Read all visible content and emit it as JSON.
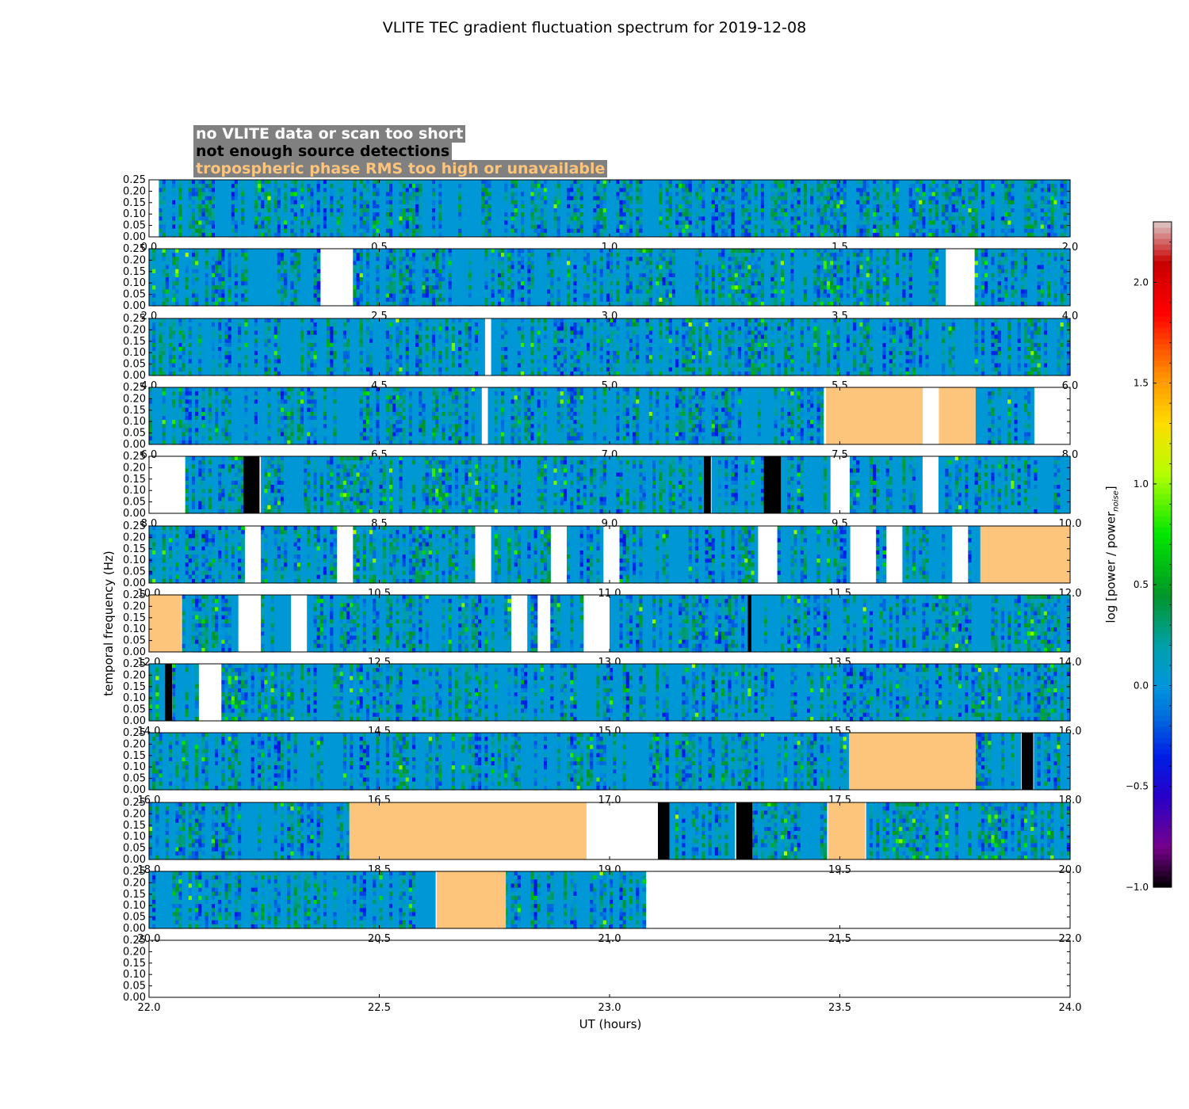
{
  "chart_data": {
    "type": "heatmap",
    "title": "VLITE TEC gradient fluctuation spectrum for 2019-12-08",
    "xlabel": "UT (hours)",
    "ylabel": "temporal frequency (Hz)",
    "colorbar_label_main": "log [power / power",
    "colorbar_label_sub": "noise",
    "colorbar_label_end": "]",
    "colorbar_range": [
      -1.0,
      2.3
    ],
    "colorbar_ticks": [
      "−1.0",
      "−0.5",
      "0.0",
      "0.5",
      "1.0",
      "1.5",
      "2.0"
    ],
    "colorbar_tick_values": [
      -1.0,
      -0.5,
      0.0,
      0.5,
      1.0,
      1.5,
      2.0
    ],
    "ylim": [
      0.0,
      0.25
    ],
    "y_ticks": [
      "0.00",
      "0.05",
      "0.10",
      "0.15",
      "0.20",
      "0.25"
    ],
    "legend": [
      {
        "label": "no VLITE data or scan too short",
        "color": "#ffffff"
      },
      {
        "label": "not enough source detections",
        "color": "#000000"
      },
      {
        "label": "tropospheric phase RMS too high or unavailable",
        "color": "#fdc47c"
      }
    ],
    "panels": [
      {
        "xlim": [
          0.0,
          2.0
        ],
        "x_ticks": [
          "0.0",
          "0.5",
          "1.0",
          "1.5",
          "2.0"
        ],
        "no_data": [
          [
            0.0,
            0.025
          ]
        ],
        "few_detections": [],
        "troposphere": [],
        "data_end": 2.0
      },
      {
        "xlim": [
          2.0,
          4.0
        ],
        "x_ticks": [
          "2.0",
          "2.5",
          "3.0",
          "3.5",
          "4.0"
        ],
        "no_data": [
          [
            2.373,
            2.445
          ],
          [
            3.728,
            3.79
          ]
        ],
        "few_detections": [],
        "troposphere": [],
        "data_end": 4.0
      },
      {
        "xlim": [
          4.0,
          6.0
        ],
        "x_ticks": [
          "4.0",
          "4.5",
          "5.0",
          "5.5",
          "6.0"
        ],
        "no_data": [
          [
            4.73,
            4.745
          ]
        ],
        "few_detections": [],
        "troposphere": [],
        "data_end": 6.0
      },
      {
        "xlim": [
          6.0,
          8.0
        ],
        "x_ticks": [
          "6.0",
          "6.5",
          "7.0",
          "7.5",
          "8.0"
        ],
        "no_data": [
          [
            6.72,
            6.738
          ],
          [
            7.465,
            7.47
          ],
          [
            7.68,
            7.715
          ],
          [
            7.92,
            8.0
          ]
        ],
        "few_detections": [],
        "troposphere": [
          [
            7.47,
            7.68
          ],
          [
            7.715,
            7.795
          ]
        ],
        "data_end": 8.0
      },
      {
        "xlim": [
          8.0,
          10.0
        ],
        "x_ticks": [
          "8.0",
          "8.5",
          "9.0",
          "9.5",
          "10.0"
        ],
        "no_data": [
          [
            8.0,
            8.08
          ],
          [
            9.48,
            9.525
          ],
          [
            9.68,
            9.715
          ]
        ],
        "few_detections": [
          [
            8.205,
            8.24
          ],
          [
            9.205,
            9.22
          ],
          [
            9.335,
            9.372
          ]
        ],
        "troposphere": [],
        "data_end": 10.0
      },
      {
        "xlim": [
          10.0,
          12.0
        ],
        "x_ticks": [
          "10.0",
          "10.5",
          "11.0",
          "11.5",
          "12.0"
        ],
        "no_data": [
          [
            10.205,
            10.24
          ],
          [
            10.41,
            10.445
          ],
          [
            10.705,
            10.74
          ],
          [
            10.875,
            10.91
          ],
          [
            10.985,
            11.02
          ],
          [
            11.32,
            11.365
          ],
          [
            11.52,
            11.58
          ],
          [
            11.6,
            11.635
          ],
          [
            11.74,
            11.78
          ]
        ],
        "few_detections": [],
        "troposphere": [
          [
            11.805,
            12.0
          ]
        ],
        "data_end": 12.0
      },
      {
        "xlim": [
          12.0,
          14.0
        ],
        "x_ticks": [
          "12.0",
          "12.5",
          "13.0",
          "13.5",
          "14.0"
        ],
        "no_data": [
          [
            12.195,
            12.24
          ],
          [
            12.31,
            12.345
          ],
          [
            12.785,
            12.82
          ],
          [
            12.84,
            12.875
          ],
          [
            12.945,
            12.997
          ]
        ],
        "few_detections": [
          [
            13.3,
            13.308
          ]
        ],
        "troposphere": [
          [
            12.0,
            12.07
          ]
        ],
        "data_end": 14.0
      },
      {
        "xlim": [
          14.0,
          16.0
        ],
        "x_ticks": [
          "14.0",
          "14.5",
          "15.0",
          "15.5",
          "16.0"
        ],
        "no_data": [
          [
            14.105,
            14.16
          ]
        ],
        "few_detections": [
          [
            14.035,
            14.05
          ]
        ],
        "troposphere": [],
        "data_end": 16.0
      },
      {
        "xlim": [
          16.0,
          18.0
        ],
        "x_ticks": [
          "16.0",
          "16.5",
          "17.0",
          "17.5",
          "18.0"
        ],
        "no_data": [],
        "few_detections": [
          [
            17.895,
            17.92
          ]
        ],
        "troposphere": [
          [
            17.52,
            17.795
          ]
        ],
        "data_end": 18.0
      },
      {
        "xlim": [
          18.0,
          20.0
        ],
        "x_ticks": [
          "18.0",
          "18.5",
          "19.0",
          "19.5",
          "20.0"
        ],
        "no_data": [
          [
            18.95,
            19.105
          ]
        ],
        "few_detections": [
          [
            19.105,
            19.13
          ],
          [
            19.275,
            19.31
          ]
        ],
        "troposphere": [
          [
            18.435,
            18.95
          ],
          [
            19.475,
            19.555
          ]
        ],
        "data_end": 20.0
      },
      {
        "xlim": [
          20.0,
          22.0
        ],
        "x_ticks": [
          "20.0",
          "20.5",
          "21.0",
          "21.5",
          "22.0"
        ],
        "no_data": [],
        "few_detections": [],
        "troposphere": [
          [
            20.625,
            20.775
          ]
        ],
        "data_end": 21.075
      },
      {
        "xlim": [
          22.0,
          24.0
        ],
        "x_ticks": [
          "22.0",
          "22.5",
          "23.0",
          "23.5",
          "24.0"
        ],
        "no_data": [],
        "few_detections": [],
        "troposphere": [],
        "data_end": 22.0
      }
    ]
  }
}
